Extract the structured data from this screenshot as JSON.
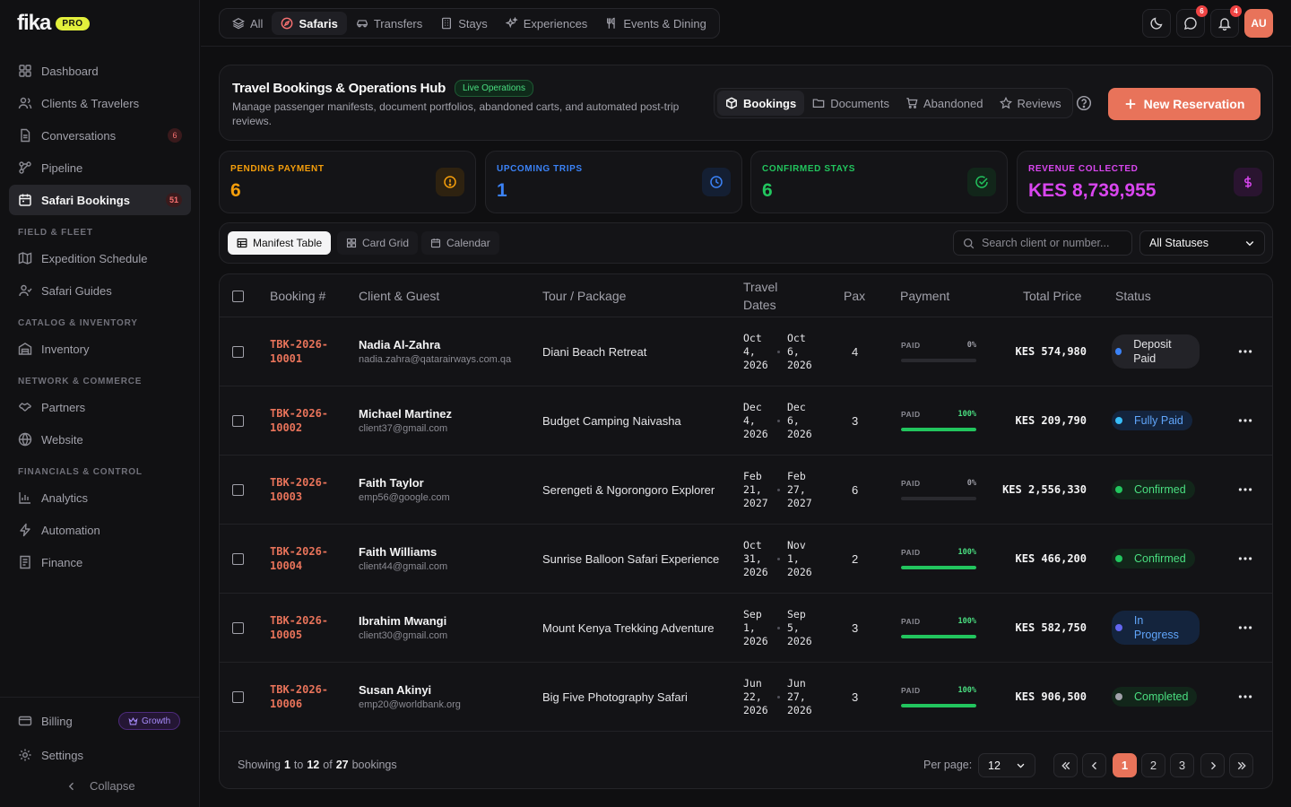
{
  "brand": {
    "name": "fika",
    "badge": "PRO"
  },
  "sidebar": {
    "items": [
      {
        "label": "Dashboard"
      },
      {
        "label": "Clients & Travelers"
      },
      {
        "label": "Conversations",
        "badge": "6"
      },
      {
        "label": "Pipeline"
      },
      {
        "label": "Safari Bookings",
        "badge": "51"
      },
      {
        "label": "Expedition Schedule"
      },
      {
        "label": "Safari Guides"
      },
      {
        "label": "Inventory"
      },
      {
        "label": "Partners"
      },
      {
        "label": "Website"
      },
      {
        "label": "Analytics"
      },
      {
        "label": "Automation"
      },
      {
        "label": "Finance"
      }
    ],
    "sections": [
      "FIELD & FLEET",
      "CATALOG & INVENTORY",
      "NETWORK & COMMERCE",
      "FINANCIALS & CONTROL"
    ],
    "footer": {
      "billing": "Billing",
      "growth_badge": "Growth",
      "settings": "Settings",
      "collapse": "Collapse"
    }
  },
  "topnav": {
    "tabs": [
      {
        "label": "All"
      },
      {
        "label": "Safaris"
      },
      {
        "label": "Transfers"
      },
      {
        "label": "Stays"
      },
      {
        "label": "Experiences"
      },
      {
        "label": "Events & Dining"
      }
    ],
    "messages_badge": "6",
    "notifications_badge": "4",
    "avatar_initials": "AU"
  },
  "header": {
    "title": "Travel Bookings & Operations Hub",
    "live_badge": "Live Operations",
    "subtitle": "Manage passenger manifests, document portfolios, abandoned carts, and automated post-trip reviews.",
    "tabs": [
      {
        "label": "Bookings"
      },
      {
        "label": "Documents"
      },
      {
        "label": "Abandoned"
      },
      {
        "label": "Reviews"
      }
    ],
    "new_button": "New Reservation"
  },
  "stats": [
    {
      "label": "PENDING PAYMENT",
      "value": "6",
      "color": "#f59e0b"
    },
    {
      "label": "UPCOMING TRIPS",
      "value": "1",
      "color": "#3b82f6"
    },
    {
      "label": "CONFIRMED STAYS",
      "value": "6",
      "color": "#22c55e"
    },
    {
      "label": "REVENUE COLLECTED",
      "value": "KES 8,739,955",
      "color": "#d946ef"
    }
  ],
  "toolbar": {
    "views": [
      {
        "label": "Manifest Table"
      },
      {
        "label": "Card Grid"
      },
      {
        "label": "Calendar"
      }
    ],
    "search_placeholder": "Search client or number...",
    "status_filter": "All Statuses"
  },
  "table": {
    "headers": {
      "booking": "Booking #",
      "client": "Client & Guest",
      "tour": "Tour / Package",
      "dates": "Travel Dates",
      "pax": "Pax",
      "payment": "Payment",
      "price": "Total Price",
      "status": "Status"
    },
    "pay_label": "PAID",
    "rows": [
      {
        "id": "TBK-2026-10001",
        "name": "Nadia Al-Zahra",
        "email": "nadia.zahra@qatarairways.com.qa",
        "tour": "Diani Beach Retreat",
        "start": "Oct 4, 2026",
        "end": "Oct 6, 2026",
        "pax": "4",
        "paid_pct": "0%",
        "paid_frac": 0,
        "price": "KES 574,980",
        "status": "Deposit Paid",
        "status_color": "#3b82f6",
        "status_text_color": "#e4e4e7",
        "status_bg": "#232328"
      },
      {
        "id": "TBK-2026-10002",
        "name": "Michael Martinez",
        "email": "client37@gmail.com",
        "tour": "Budget Camping Naivasha",
        "start": "Dec 4, 2026",
        "end": "Dec 6, 2026",
        "pax": "3",
        "paid_pct": "100%",
        "paid_frac": 1,
        "price": "KES 209,790",
        "status": "Fully Paid",
        "status_color": "#38bdf8",
        "status_text_color": "#60a5fa",
        "status_bg": "#14243d"
      },
      {
        "id": "TBK-2026-10003",
        "name": "Faith Taylor",
        "email": "emp56@google.com",
        "tour": "Serengeti & Ngorongoro Explorer",
        "start": "Feb 21, 2027",
        "end": "Feb 27, 2027",
        "pax": "6",
        "paid_pct": "0%",
        "paid_frac": 0,
        "price": "KES 2,556,330",
        "status": "Confirmed",
        "status_color": "#22c55e",
        "status_text_color": "#4ade80",
        "status_bg": "#12261a"
      },
      {
        "id": "TBK-2026-10004",
        "name": "Faith Williams",
        "email": "client44@gmail.com",
        "tour": "Sunrise Balloon Safari Experience",
        "start": "Oct 31, 2026",
        "end": "Nov 1, 2026",
        "pax": "2",
        "paid_pct": "100%",
        "paid_frac": 1,
        "price": "KES 466,200",
        "status": "Confirmed",
        "status_color": "#22c55e",
        "status_text_color": "#4ade80",
        "status_bg": "#12261a"
      },
      {
        "id": "TBK-2026-10005",
        "name": "Ibrahim Mwangi",
        "email": "client30@gmail.com",
        "tour": "Mount Kenya Trekking Adventure",
        "start": "Sep 1, 2026",
        "end": "Sep 5, 2026",
        "pax": "3",
        "paid_pct": "100%",
        "paid_frac": 1,
        "price": "KES 582,750",
        "status": "In Progress",
        "status_color": "#6366f1",
        "status_text_color": "#60a5fa",
        "status_bg": "#14243d"
      },
      {
        "id": "TBK-2026-10006",
        "name": "Susan Akinyi",
        "email": "emp20@worldbank.org",
        "tour": "Big Five Photography Safari",
        "start": "Jun 22, 2026",
        "end": "Jun 27, 2026",
        "pax": "3",
        "paid_pct": "100%",
        "paid_frac": 1,
        "price": "KES 906,500",
        "status": "Completed",
        "status_color": "#a1a1aa",
        "status_text_color": "#4ade80",
        "status_bg": "#12261a"
      }
    ]
  },
  "footer": {
    "showing": "Showing",
    "from": "1",
    "to_word": "to",
    "to": "12",
    "of_word": "of",
    "total": "27",
    "suffix": "bookings",
    "per_page_label": "Per page:",
    "per_page": "12",
    "pages": [
      "1",
      "2",
      "3"
    ]
  }
}
